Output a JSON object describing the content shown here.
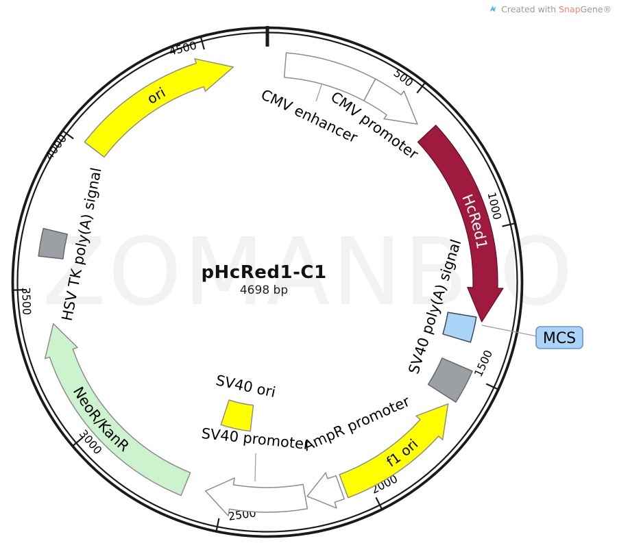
{
  "credit": {
    "prefix": "Created with ",
    "brand_snap": "Snap",
    "brand_gene": "Gene®"
  },
  "watermark": "ZOMANBIO",
  "plasmid": {
    "name": "pHcRed1-C1",
    "size_label": "4698 bp"
  },
  "chart_data": {
    "type": "plasmid-map",
    "title": "pHcRed1-C1",
    "length_bp": 4698,
    "length_label": "4698 bp",
    "tick_interval_bp": 500,
    "tick_labels": [
      500,
      1000,
      1500,
      2000,
      2500,
      3000,
      3500,
      4000,
      4500
    ],
    "origin_marker_deg": 0,
    "colors": {
      "backbone": "#1a1a1a",
      "cds_red": "#A01A40",
      "ori_yellow": "#FFFF00",
      "resistance_green": "#CDF2CE",
      "signal_gray": "#9CA0A5",
      "mcs_blue": "#AAD4F8",
      "promoter_white": "#FFFFFF",
      "callout_line": "#999999",
      "mcs_box_border": "#6593CE"
    },
    "features": [
      {
        "id": "cmv-enhancer",
        "name": "CMV enhancer",
        "shape": "block",
        "color": "#FFFFFF",
        "outline": "#8c8c8c",
        "direction": "none",
        "start_deg": 4.7,
        "end_deg": 28,
        "band": "main",
        "label_placement": "external",
        "label_color": "#000000"
      },
      {
        "id": "cmv-promoter",
        "name": "CMV promoter",
        "shape": "arrow",
        "color": "#FFFFFF",
        "outline": "#8c8c8c",
        "direction": "cw",
        "start_deg": 28,
        "end_deg": 43.5,
        "band": "main",
        "label_placement": "external",
        "label_color": "#000000"
      },
      {
        "id": "hcred1",
        "name": "HcRed1",
        "shape": "arrow",
        "color": "#A01A40",
        "outline": "#5a1026",
        "direction": "cw",
        "start_deg": 47,
        "end_deg": 100.5,
        "band": "main",
        "label_placement": "curved",
        "label_color": "#ffffff"
      },
      {
        "id": "mcs",
        "name": "MCS",
        "shape": "block",
        "color": "#AAD4F8",
        "outline": "#444444",
        "direction": "none",
        "start_deg": 99.5,
        "end_deg": 106.5,
        "band": "mcs",
        "label_placement": "callout-box",
        "label_color": "#000000"
      },
      {
        "id": "sv40-polya",
        "name": "SV40 poly(A) signal",
        "shape": "block",
        "color": "#9CA0A5",
        "outline": "#63676b",
        "direction": "none",
        "start_deg": 113.5,
        "end_deg": 122.5,
        "band": "polya",
        "label_placement": "external",
        "label_color": "#000000"
      },
      {
        "id": "f1-ori",
        "name": "f1 ori",
        "shape": "arrow",
        "color": "#FFFF00",
        "outline": "#8c8c8c",
        "direction": "ccw",
        "start_deg": 124,
        "end_deg": 159.5,
        "band": "main",
        "label_placement": "curved",
        "label_color": "#000000"
      },
      {
        "id": "ampr-promoter",
        "name": "AmpR promoter",
        "shape": "arrow",
        "color": "#FFFFFF",
        "outline": "#8c8c8c",
        "direction": "cw",
        "start_deg": 160.5,
        "end_deg": 169.5,
        "band": "main",
        "label_placement": "external",
        "label_color": "#000000"
      },
      {
        "id": "sv40-promoter",
        "name": "SV40 promoter",
        "shape": "arrow",
        "color": "#FFFFFF",
        "outline": "#8c8c8c",
        "direction": "cw",
        "start_deg": 170,
        "end_deg": 196.5,
        "band": "main",
        "label_placement": "external",
        "label_color": "#000000"
      },
      {
        "id": "sv40-ori",
        "name": "SV40 ori",
        "shape": "block",
        "color": "#FFFF00",
        "outline": "#8c8c8c",
        "direction": "none",
        "start_deg": 186.5,
        "end_deg": 198,
        "band": "inner",
        "label_placement": "external",
        "label_color": "#000000"
      },
      {
        "id": "neor-kanr",
        "name": "NeoR/KanR",
        "shape": "arrow",
        "color": "#CDF2CE",
        "outline": "#8c8c8c",
        "direction": "cw",
        "start_deg": 202,
        "end_deg": 259,
        "band": "main",
        "label_placement": "curved",
        "label_color": "#000000"
      },
      {
        "id": "hsv-tk-polya",
        "name": "HSV TK poly(A) signal",
        "shape": "block",
        "color": "#9CA0A5",
        "outline": "#63676b",
        "direction": "none",
        "start_deg": 276.5,
        "end_deg": 283.5,
        "band": "main",
        "label_placement": "external",
        "label_color": "#000000"
      },
      {
        "id": "ori",
        "name": "ori",
        "shape": "arrow",
        "color": "#FFFF00",
        "outline": "#8c8c8c",
        "direction": "cw",
        "start_deg": 307.5,
        "end_deg": 351,
        "band": "main",
        "label_placement": "curved",
        "label_color": "#000000"
      }
    ]
  }
}
